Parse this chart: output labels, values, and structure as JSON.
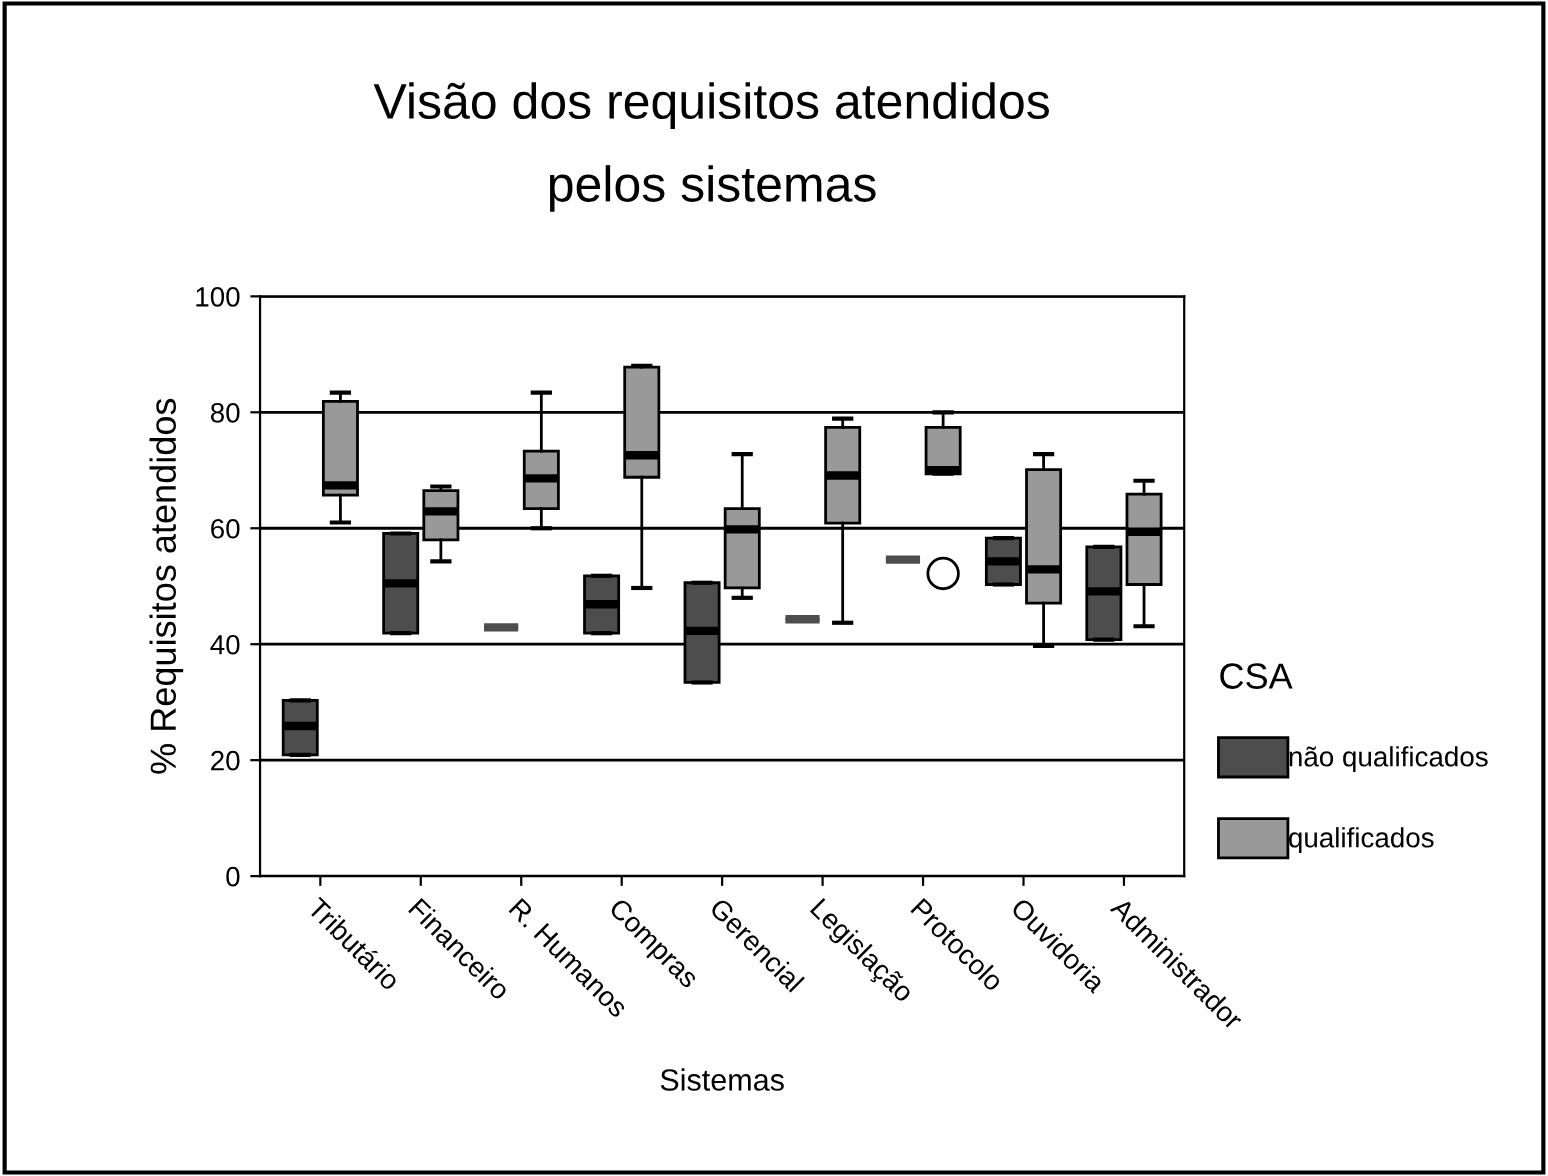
{
  "chart_data": {
    "type": "box",
    "title": "Visão dos requisitos atendidos\npelos sistemas",
    "xlabel": "Sistemas",
    "ylabel": "% Requisitos atendidos",
    "legend_title": "CSA",
    "legend": "right",
    "categories": [
      "Tributário",
      "Financeiro",
      "R. Humanos",
      "Compras",
      "Gerencial",
      "Legislação",
      "Protocolo",
      "Ouvidoria",
      "Administrador"
    ],
    "ylim": [
      0,
      100
    ],
    "yticks": [
      0,
      20,
      40,
      60,
      80,
      100
    ],
    "grid": "y",
    "series": [
      {
        "name": "não qualificados",
        "color": "#4d4d4d",
        "boxes": [
          {
            "low": 20.9,
            "q1": 20.9,
            "median": 25.9,
            "q3": 30.3,
            "high": 30.3
          },
          {
            "low": 41.9,
            "q1": 41.9,
            "median": 50.5,
            "q3": 59.1,
            "high": 59.1
          },
          {
            "low": 42.9,
            "q1": 42.9,
            "median": 42.9,
            "q3": 42.9,
            "high": 42.9
          },
          {
            "low": 41.9,
            "q1": 41.9,
            "median": 46.9,
            "q3": 51.8,
            "high": 51.8
          },
          {
            "low": 33.4,
            "q1": 33.4,
            "median": 42.3,
            "q3": 50.6,
            "high": 50.6
          },
          {
            "low": 44.3,
            "q1": 44.3,
            "median": 44.3,
            "q3": 44.3,
            "high": 44.3
          },
          {
            "low": 54.6,
            "q1": 54.6,
            "median": 54.6,
            "q3": 54.6,
            "high": 54.6
          },
          {
            "low": 50.3,
            "q1": 50.3,
            "median": 54.3,
            "q3": 58.3,
            "high": 58.3
          },
          {
            "low": 40.8,
            "q1": 40.8,
            "median": 49.1,
            "q3": 56.8,
            "high": 56.8
          }
        ]
      },
      {
        "name": "qualificados",
        "color": "#999999",
        "boxes": [
          {
            "low": 61.0,
            "q1": 65.7,
            "median": 67.4,
            "q3": 81.9,
            "high": 83.4
          },
          {
            "low": 54.3,
            "q1": 58.0,
            "median": 62.9,
            "q3": 66.5,
            "high": 67.2
          },
          {
            "low": 60.0,
            "q1": 63.4,
            "median": 68.6,
            "q3": 73.3,
            "high": 83.4
          },
          {
            "low": 49.7,
            "q1": 68.8,
            "median": 72.6,
            "q3": 87.8,
            "high": 88.0
          },
          {
            "low": 48.0,
            "q1": 49.7,
            "median": 59.8,
            "q3": 63.4,
            "high": 72.8
          },
          {
            "low": 43.7,
            "q1": 60.9,
            "median": 69.1,
            "q3": 77.4,
            "high": 78.9
          },
          {
            "low": 69.4,
            "q1": 69.4,
            "median": 70.0,
            "q3": 77.4,
            "high": 80.0,
            "outliers": [
              52.2
            ]
          },
          {
            "low": 39.7,
            "q1": 47.1,
            "median": 52.9,
            "q3": 70.1,
            "high": 72.8
          },
          {
            "low": 43.1,
            "q1": 50.3,
            "median": 59.4,
            "q3": 65.9,
            "high": 68.2
          }
        ]
      }
    ]
  }
}
